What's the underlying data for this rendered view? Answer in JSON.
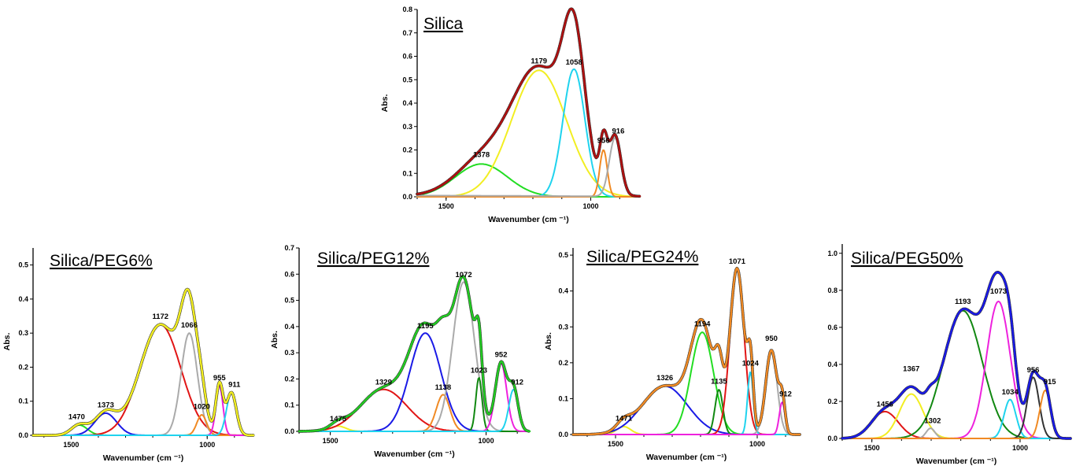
{
  "colors": {
    "green": "#22dd22",
    "yellow": "#f2ee22",
    "cyan": "#1fd3ee",
    "orange": "#f08a24",
    "gray": "#aaaaaa",
    "red": "#e11515",
    "blue": "#1a1ae6",
    "magenta": "#ee22dd",
    "darkgreen": "#118811",
    "dark": "#333333",
    "darkred": "#b01010",
    "brightgreen": "#22cc22"
  },
  "chart_data": [
    {
      "id": "silica",
      "type": "line",
      "title": "Silica",
      "xlabel": "Wavenumber (cm ⁻¹)",
      "ylabel": "Abs.",
      "xlim": [
        1600,
        830
      ],
      "ylim": [
        0,
        0.8
      ],
      "xticks": [
        1500,
        1000
      ],
      "yticks": [
        0.0,
        0.1,
        0.2,
        0.3,
        0.4,
        0.5,
        0.6,
        0.7,
        0.8
      ],
      "series": [
        {
          "color": "green",
          "peaks": [
            [
              1378,
              0.14,
              90
            ]
          ]
        },
        {
          "color": "yellow",
          "peaks": [
            [
              1179,
              0.54,
              95
            ]
          ]
        },
        {
          "color": "cyan",
          "peaks": [
            [
              1058,
              0.545,
              38
            ]
          ]
        },
        {
          "color": "orange",
          "peaks": [
            [
              956,
              0.2,
              13
            ]
          ]
        },
        {
          "color": "gray",
          "peaks": [
            [
              916,
              0.25,
              20
            ],
            [
              1600,
              0.005,
              500
            ]
          ]
        }
      ],
      "envelope": {
        "color": "darkred",
        "underlay": "dark",
        "width": 2.5
      },
      "peak_labels": [
        {
          "text": "1378",
          "x": 1378,
          "y": 0.16
        },
        {
          "text": "1179",
          "x": 1179,
          "y": 0.56
        },
        {
          "text": "1058",
          "x": 1058,
          "y": 0.555
        },
        {
          "text": "956",
          "x": 956,
          "y": 0.22
        },
        {
          "text": "916",
          "x": 905,
          "y": 0.26
        }
      ]
    },
    {
      "id": "peg6",
      "type": "line",
      "title": "Silica/PEG6%",
      "xlabel": "Wavenumber (cm ⁻¹)",
      "ylabel": "Abs.",
      "xlim": [
        1640,
        830
      ],
      "ylim": [
        0,
        0.55
      ],
      "xticks": [
        1500,
        1000
      ],
      "yticks": [
        0.0,
        0.1,
        0.2,
        0.3,
        0.4,
        0.5
      ],
      "series": [
        {
          "color": "green",
          "peaks": [
            [
              1470,
              0.03,
              30
            ]
          ]
        },
        {
          "color": "blue",
          "peaks": [
            [
              1373,
              0.065,
              40
            ]
          ]
        },
        {
          "color": "red",
          "peaks": [
            [
              1172,
              0.325,
              75
            ]
          ]
        },
        {
          "color": "gray",
          "peaks": [
            [
              1066,
              0.3,
              30
            ]
          ]
        },
        {
          "color": "orange",
          "peaks": [
            [
              1020,
              0.06,
              18
            ]
          ]
        },
        {
          "color": "magenta",
          "peaks": [
            [
              955,
              0.145,
              13
            ]
          ]
        },
        {
          "color": "cyan",
          "peaks": [
            [
              911,
              0.125,
              18
            ]
          ]
        }
      ],
      "envelope": {
        "color": "yellow",
        "underlay": "dark",
        "width": 2.5
      },
      "peak_labels": [
        {
          "text": "1470",
          "x": 1480,
          "y": 0.04
        },
        {
          "text": "1373",
          "x": 1373,
          "y": 0.075
        },
        {
          "text": "1172",
          "x": 1172,
          "y": 0.335
        },
        {
          "text": "1066",
          "x": 1066,
          "y": 0.31
        },
        {
          "text": "1020",
          "x": 1020,
          "y": 0.07
        },
        {
          "text": "955",
          "x": 955,
          "y": 0.155
        },
        {
          "text": "911",
          "x": 900,
          "y": 0.135
        }
      ]
    },
    {
      "id": "peg12",
      "type": "line",
      "title": "Silica/PEG12%",
      "xlabel": "Wavenumber (cm ⁻¹)",
      "ylabel": "Abs.",
      "xlim": [
        1600,
        860
      ],
      "ylim": [
        0,
        0.7
      ],
      "xticks": [
        1500,
        1000
      ],
      "yticks": [
        0.0,
        0.1,
        0.2,
        0.3,
        0.4,
        0.5,
        0.6,
        0.7
      ],
      "series": [
        {
          "color": "yellow",
          "peaks": [
            [
              1475,
              0.02,
              25
            ]
          ]
        },
        {
          "color": "red",
          "peaks": [
            [
              1329,
              0.16,
              75
            ]
          ]
        },
        {
          "color": "blue",
          "peaks": [
            [
              1195,
              0.375,
              50
            ]
          ]
        },
        {
          "color": "orange",
          "peaks": [
            [
              1138,
              0.14,
              22
            ]
          ]
        },
        {
          "color": "gray",
          "peaks": [
            [
              1072,
              0.57,
              35
            ]
          ]
        },
        {
          "color": "darkgreen",
          "peaks": [
            [
              1023,
              0.205,
              10
            ]
          ]
        },
        {
          "color": "magenta",
          "peaks": [
            [
              952,
              0.26,
              18
            ]
          ]
        },
        {
          "color": "cyan",
          "peaks": [
            [
              912,
              0.16,
              15
            ]
          ]
        }
      ],
      "envelope": {
        "color": "brightgreen",
        "underlay": "dark",
        "width": 2.5
      },
      "peak_labels": [
        {
          "text": "1475",
          "x": 1475,
          "y": 0.03
        },
        {
          "text": "1329",
          "x": 1329,
          "y": 0.17
        },
        {
          "text": "1195",
          "x": 1195,
          "y": 0.385
        },
        {
          "text": "1138",
          "x": 1138,
          "y": 0.15
        },
        {
          "text": "1072",
          "x": 1072,
          "y": 0.58
        },
        {
          "text": "1023",
          "x": 1023,
          "y": 0.215
        },
        {
          "text": "952",
          "x": 952,
          "y": 0.275
        },
        {
          "text": "912",
          "x": 900,
          "y": 0.17
        }
      ]
    },
    {
      "id": "peg24",
      "type": "line",
      "title": "Silica/PEG24%",
      "xlabel": "Wavenumber (cm ⁻¹)",
      "ylabel": "Abs.",
      "xlim": [
        1650,
        850
      ],
      "ylim": [
        0,
        0.52
      ],
      "xticks": [
        1500,
        1000
      ],
      "yticks": [
        0.0,
        0.1,
        0.2,
        0.3,
        0.4,
        0.5
      ],
      "series": [
        {
          "color": "yellow",
          "peaks": [
            [
              1471,
              0.022,
              25
            ]
          ]
        },
        {
          "color": "blue",
          "peaks": [
            [
              1326,
              0.135,
              80
            ]
          ]
        },
        {
          "color": "green",
          "peaks": [
            [
              1194,
              0.285,
              40
            ]
          ]
        },
        {
          "color": "darkgreen",
          "peaks": [
            [
              1135,
              0.125,
              14
            ]
          ]
        },
        {
          "color": "red",
          "peaks": [
            [
              1071,
              0.46,
              25
            ]
          ]
        },
        {
          "color": "cyan",
          "peaks": [
            [
              1024,
              0.175,
              10
            ]
          ]
        },
        {
          "color": "gray",
          "peaks": [
            [
              950,
              0.235,
              20
            ]
          ]
        },
        {
          "color": "magenta",
          "peaks": [
            [
              912,
              0.09,
              10
            ]
          ]
        }
      ],
      "envelope": {
        "color": "orange",
        "underlay": "dark",
        "width": 2.5
      },
      "peak_labels": [
        {
          "text": "1471",
          "x": 1471,
          "y": 0.032
        },
        {
          "text": "1326",
          "x": 1326,
          "y": 0.145
        },
        {
          "text": "1194",
          "x": 1194,
          "y": 0.295
        },
        {
          "text": "1135",
          "x": 1135,
          "y": 0.135
        },
        {
          "text": "1071",
          "x": 1071,
          "y": 0.47
        },
        {
          "text": "1024",
          "x": 1024,
          "y": 0.185
        },
        {
          "text": "950",
          "x": 950,
          "y": 0.255
        },
        {
          "text": "912",
          "x": 900,
          "y": 0.1
        }
      ]
    },
    {
      "id": "peg50",
      "type": "line",
      "title": "Silica/PEG50%",
      "xlabel": "Wavenumber (cm ⁻¹)",
      "ylabel": "",
      "xlim": [
        1600,
        830
      ],
      "ylim": [
        0,
        1.05
      ],
      "xticks": [
        1500,
        1000
      ],
      "yticks": [
        0.0,
        0.2,
        0.4,
        0.6,
        0.8,
        1.0
      ],
      "series": [
        {
          "color": "red",
          "peaks": [
            [
              1456,
              0.145,
              45
            ]
          ]
        },
        {
          "color": "yellow",
          "peaks": [
            [
              1367,
              0.24,
              40
            ]
          ]
        },
        {
          "color": "gray",
          "peaks": [
            [
              1302,
              0.055,
              15
            ]
          ]
        },
        {
          "color": "darkgreen",
          "peaks": [
            [
              1193,
              0.69,
              65
            ]
          ]
        },
        {
          "color": "magenta",
          "peaks": [
            [
              1073,
              0.74,
              40
            ]
          ]
        },
        {
          "color": "cyan",
          "peaks": [
            [
              1034,
              0.21,
              20
            ]
          ]
        },
        {
          "color": "dark",
          "peaks": [
            [
              956,
              0.33,
              20
            ]
          ]
        },
        {
          "color": "orange",
          "peaks": [
            [
              915,
              0.26,
              18
            ]
          ]
        }
      ],
      "envelope": {
        "color": "blue",
        "underlay": "dark",
        "width": 2.5
      },
      "peak_labels": [
        {
          "text": "1456",
          "x": 1456,
          "y": 0.16
        },
        {
          "text": "1367",
          "x": 1367,
          "y": 0.35
        },
        {
          "text": "1302",
          "x": 1295,
          "y": 0.07
        },
        {
          "text": "1193",
          "x": 1193,
          "y": 0.715
        },
        {
          "text": "1073",
          "x": 1073,
          "y": 0.77
        },
        {
          "text": "1034",
          "x": 1034,
          "y": 0.225
        },
        {
          "text": "956",
          "x": 956,
          "y": 0.345
        },
        {
          "text": "915",
          "x": 900,
          "y": 0.28
        }
      ]
    }
  ]
}
